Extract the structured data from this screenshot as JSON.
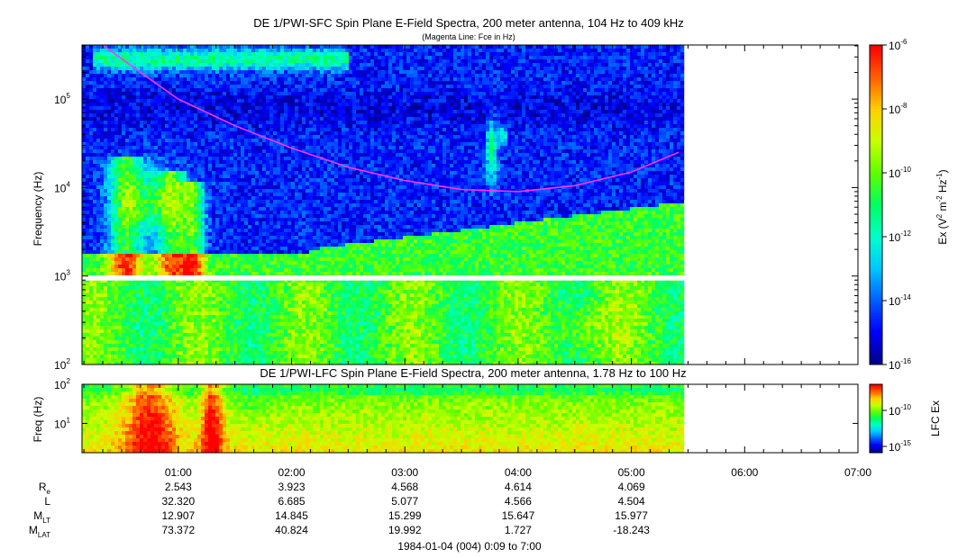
{
  "chart_data": [
    {
      "type": "heatmap",
      "title": "DE 1/PWI-SFC  Spin Plane E-Field Spectra, 200 meter antenna, 104 Hz to 409 kHz",
      "subtitle": "(Magenta Line: Fce in Hz)",
      "ylabel": "Frequency (Hz)",
      "yscale": "log",
      "yticks": [
        {
          "value": 100,
          "base": "10",
          "exp": "2"
        },
        {
          "value": 1000,
          "base": "10",
          "exp": "3"
        },
        {
          "value": 10000,
          "base": "10",
          "exp": "4"
        },
        {
          "value": 100000,
          "base": "10",
          "exp": "5"
        }
      ],
      "ylim": [
        100,
        409000
      ],
      "data_gap_hz": [
        890,
        1010
      ],
      "data_end": "05:28",
      "colorbar": {
        "label_parts": {
          "a": "Ex (V",
          "b": "2",
          "c": " m",
          "d": "-2",
          "e": " Hz",
          "f": "-1",
          "g": ")"
        },
        "scale": "log",
        "range": [
          1e-16,
          1e-06
        ],
        "ticks": [
          {
            "base": "10",
            "exp": "-6"
          },
          {
            "base": "10",
            "exp": "-8"
          },
          {
            "base": "10",
            "exp": "-10"
          },
          {
            "base": "10",
            "exp": "-12"
          },
          {
            "base": "10",
            "exp": "-14"
          },
          {
            "base": "10",
            "exp": "-16"
          }
        ],
        "colors": [
          "#00008f",
          "#0000ff",
          "#0060ff",
          "#00c8ff",
          "#00ffc8",
          "#00ff60",
          "#60ff00",
          "#c8ff00",
          "#ffd000",
          "#ff6000",
          "#ff0000"
        ]
      },
      "fce_curve": {
        "color": "#ff33ff",
        "points": [
          {
            "t": "00:20",
            "hz": 409000
          },
          {
            "t": "00:40",
            "hz": 200000
          },
          {
            "t": "01:00",
            "hz": 100000
          },
          {
            "t": "01:30",
            "hz": 50000
          },
          {
            "t": "02:00",
            "hz": 28000
          },
          {
            "t": "02:30",
            "hz": 17000
          },
          {
            "t": "03:00",
            "hz": 12000
          },
          {
            "t": "03:30",
            "hz": 9500
          },
          {
            "t": "04:00",
            "hz": 9000
          },
          {
            "t": "04:30",
            "hz": 10500
          },
          {
            "t": "05:00",
            "hz": 15000
          },
          {
            "t": "05:25",
            "hz": 25000
          }
        ]
      }
    },
    {
      "type": "heatmap",
      "title": "DE 1/PWI-LFC  Spin Plane E-Field Spectra, 200 meter antenna, 1.78 Hz to 100 Hz",
      "ylabel": "Freq (Hz)",
      "yscale": "log",
      "yticks": [
        {
          "value": 10,
          "base": "10",
          "exp": "1"
        },
        {
          "value": 100,
          "base": "10",
          "exp": "2"
        }
      ],
      "ylim": [
        1.78,
        100
      ],
      "data_end": "05:28",
      "colorbar": {
        "label": "LFC Ex",
        "scale": "log",
        "ticks": [
          {
            "value": 1e-10,
            "base": "10",
            "exp": "-10"
          },
          {
            "value": 1e-15,
            "base": "10",
            "exp": "-15"
          }
        ]
      }
    }
  ],
  "time_axis": {
    "range": [
      "00:09",
      "07:00"
    ],
    "ticks": [
      "01:00",
      "02:00",
      "03:00",
      "04:00",
      "05:00",
      "06:00",
      "07:00"
    ],
    "xlabel": "1984-01-04 (004) 0:09 to 7:00"
  },
  "ephemeris": {
    "rows": [
      {
        "label": "R",
        "sub": "e",
        "values": [
          "2.543",
          "3.923",
          "4.568",
          "4.614",
          "4.069"
        ]
      },
      {
        "label": "L",
        "sub": "",
        "values": [
          "32.320",
          "6.685",
          "5.077",
          "4.566",
          "4.504"
        ]
      },
      {
        "label": "M",
        "sub": "LT",
        "values": [
          "12.907",
          "14.845",
          "15.299",
          "15.647",
          "15.977"
        ]
      },
      {
        "label": "M",
        "sub": "LAT",
        "values": [
          "73.372",
          "40.824",
          "19.992",
          "1.727",
          "-18.243"
        ]
      }
    ]
  }
}
